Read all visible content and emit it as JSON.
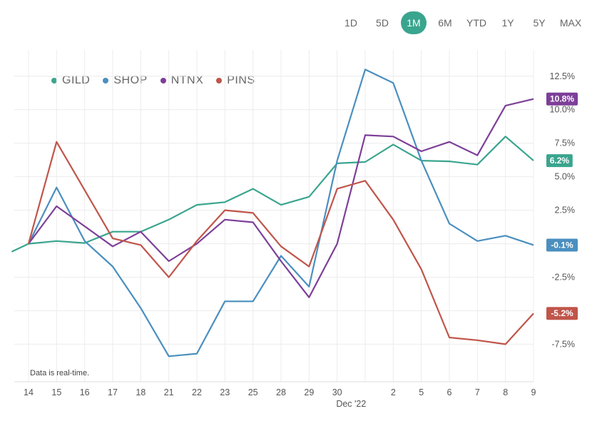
{
  "range_selector": {
    "options": [
      "1D",
      "5D",
      "1M",
      "6M",
      "YTD",
      "1Y",
      "5Y",
      "MAX"
    ],
    "active": "1M"
  },
  "footnote": "Data is real-time.",
  "colors": {
    "GILD": "#3aa58e",
    "SHOP": "#4a8fbf",
    "NTNX": "#7d3f98",
    "PINS": "#c0554a",
    "grid": "#ececec"
  },
  "chart_data": {
    "type": "line",
    "title": "",
    "xlabel": "Dec '22",
    "ylabel": "",
    "x_index": [
      -0.6,
      0,
      1,
      2,
      3,
      4,
      5,
      6,
      7,
      8,
      9,
      10,
      11,
      12,
      13,
      14,
      15,
      16,
      17,
      18
    ],
    "categories": [
      "14",
      "15",
      "16",
      "17",
      "18",
      "21",
      "22",
      "23",
      "25",
      "28",
      "29",
      "30",
      "",
      "2",
      "5",
      "6",
      "7",
      "8",
      "9"
    ],
    "xtick_positions": [
      0,
      1,
      2,
      3,
      4,
      5,
      6,
      7,
      8,
      9,
      10,
      11,
      13,
      14,
      15,
      16,
      17,
      18
    ],
    "xtick_labels": [
      "14",
      "15",
      "16",
      "17",
      "18",
      "21",
      "22",
      "23",
      "25",
      "28",
      "29",
      "30",
      "2",
      "5",
      "6",
      "7",
      "8",
      "9"
    ],
    "month_label": "Dec '22",
    "ylim": [
      -9.5,
      13.5
    ],
    "yticks": [
      12.5,
      10.0,
      7.5,
      5.0,
      2.5,
      0,
      -2.5,
      -5,
      -7.5
    ],
    "ytick_labels": [
      "12.5%",
      "10.0%",
      "7.5%",
      "5.0%",
      "2.5%",
      "",
      "-2.5%",
      "",
      "-7.5%"
    ],
    "series": [
      {
        "name": "GILD",
        "x": [
          -0.6,
          0,
          1,
          2,
          3,
          4,
          5,
          6,
          7,
          8,
          9,
          10,
          11,
          12,
          13,
          14,
          15,
          16,
          17,
          18
        ],
        "values": [
          -0.6,
          0.0,
          0.2,
          0.05,
          0.9,
          0.9,
          1.8,
          2.9,
          3.1,
          4.1,
          2.9,
          3.5,
          6.0,
          6.1,
          7.4,
          6.2,
          6.15,
          5.9,
          8.0,
          6.2
        ],
        "last_label": "6.2%"
      },
      {
        "name": "SHOP",
        "x": [
          0,
          1,
          2,
          3,
          4,
          5,
          6,
          7,
          8,
          9,
          10,
          11,
          12,
          13,
          14,
          15,
          16,
          17,
          18
        ],
        "values": [
          0.0,
          4.2,
          0.2,
          -1.7,
          -4.8,
          -8.4,
          -8.2,
          -4.3,
          -4.3,
          -0.9,
          -3.2,
          6.2,
          13.0,
          12.0,
          6.2,
          1.5,
          0.2,
          0.6,
          -0.1
        ],
        "last_label": "-0.1%"
      },
      {
        "name": "NTNX",
        "x": [
          0,
          1,
          2,
          3,
          4,
          5,
          6,
          7,
          8,
          9,
          10,
          11,
          12,
          13,
          14,
          15,
          16,
          17,
          18
        ],
        "values": [
          0.0,
          2.8,
          1.3,
          -0.2,
          0.9,
          -1.3,
          0.0,
          1.8,
          1.6,
          -1.3,
          -4.0,
          0.0,
          8.1,
          8.0,
          6.9,
          7.6,
          6.6,
          10.3,
          10.8
        ],
        "last_label": "10.8%"
      },
      {
        "name": "PINS",
        "x": [
          0,
          1,
          2,
          3,
          4,
          5,
          6,
          7,
          8,
          9,
          10,
          11,
          12,
          13,
          14,
          15,
          16,
          17,
          18
        ],
        "values": [
          0.0,
          7.6,
          4.0,
          0.4,
          -0.1,
          -2.5,
          0.2,
          2.5,
          2.3,
          -0.2,
          -1.7,
          4.1,
          4.7,
          1.8,
          -1.9,
          -7.0,
          -7.2,
          -7.5,
          -5.2
        ],
        "last_label": "-5.2%"
      }
    ],
    "legend": [
      "GILD",
      "SHOP",
      "NTNX",
      "PINS"
    ],
    "legend_position": "top-left",
    "grid": true
  }
}
